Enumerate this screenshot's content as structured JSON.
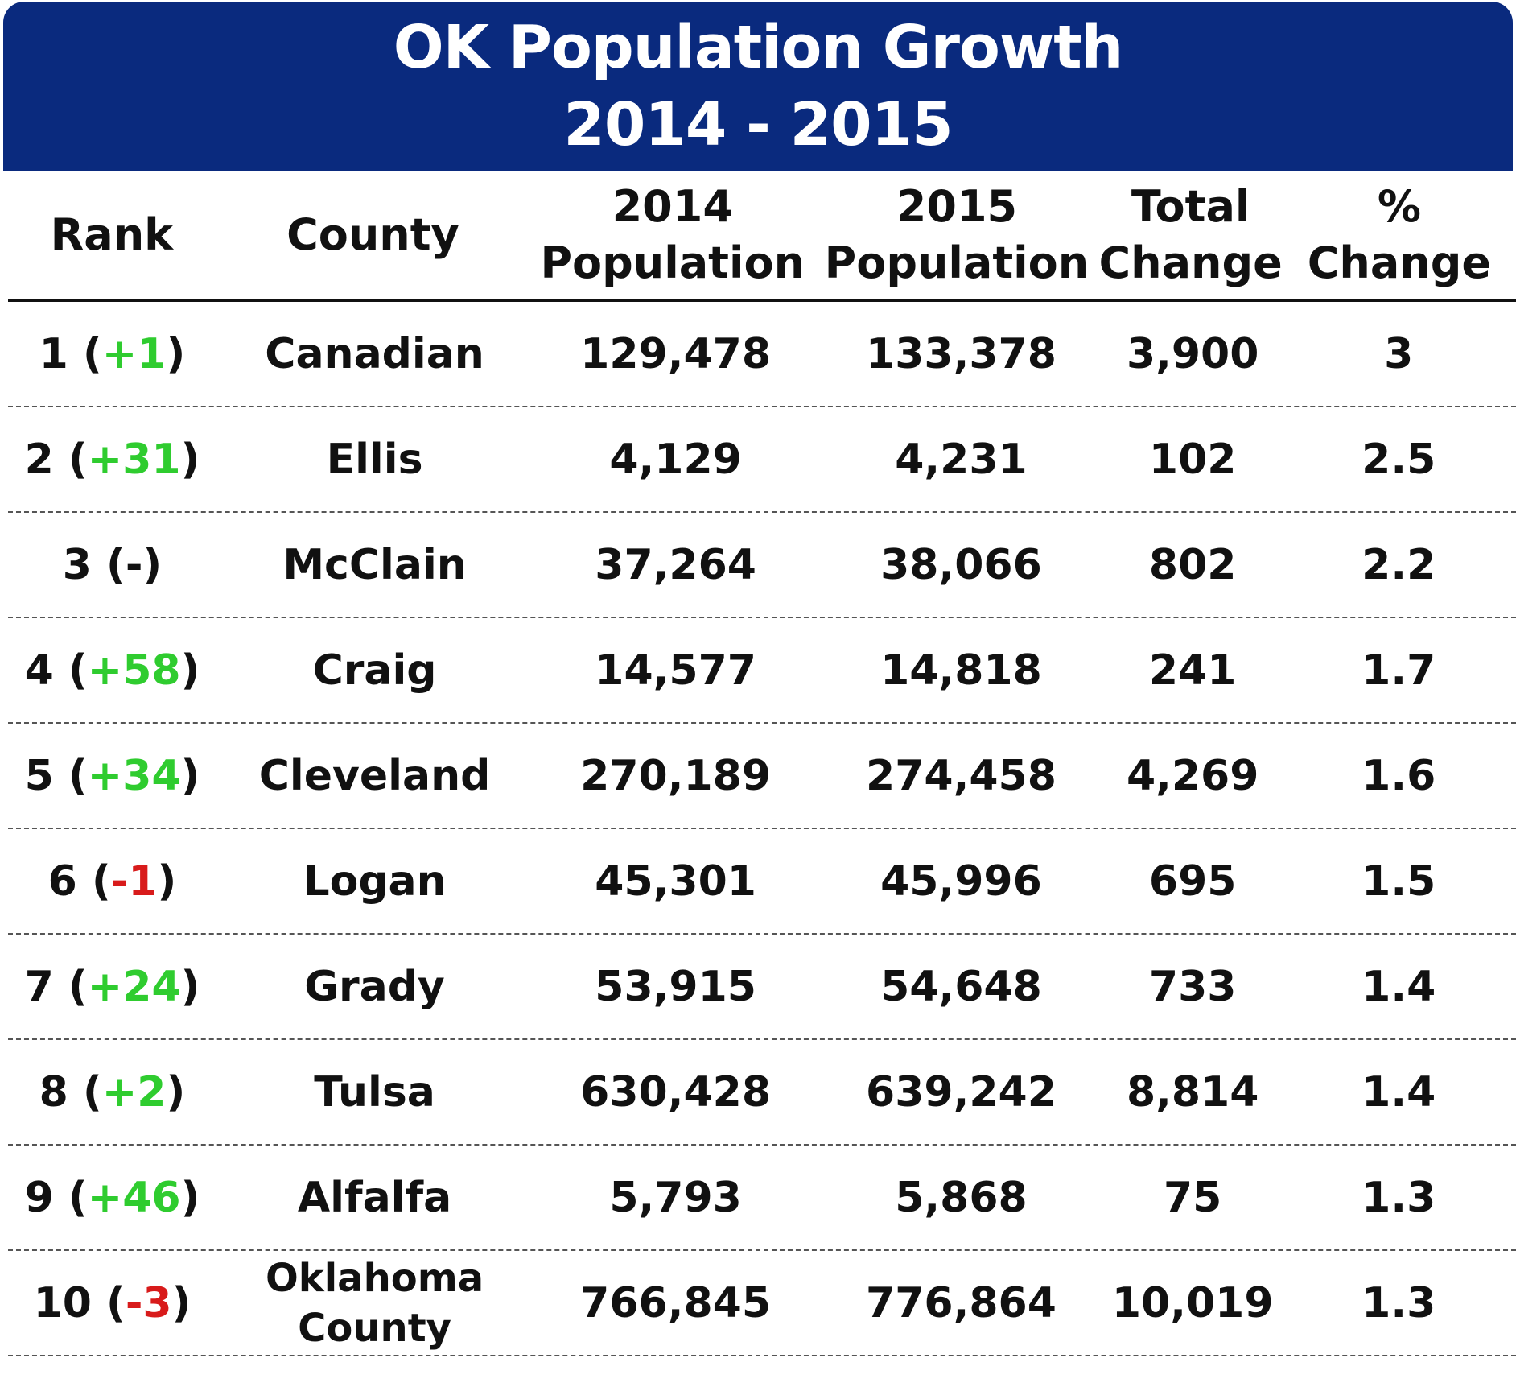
{
  "header": {
    "title_line1": "OK Population Growth",
    "title_line2": "2014 - 2015"
  },
  "colors": {
    "banner": "#0a2a7e",
    "up": "#2fcc2f",
    "down": "#d81b1b"
  },
  "columns": {
    "rank": [
      "Rank"
    ],
    "county": [
      "County"
    ],
    "pop2014": [
      "2014",
      "Population"
    ],
    "pop2015": [
      "2015",
      "Population"
    ],
    "total": [
      "Total",
      "Change"
    ],
    "pct": [
      "%",
      "Change"
    ]
  },
  "chart_data": {
    "type": "table",
    "title": "OK Population Growth 2014 - 2015",
    "headers": [
      "Rank",
      "County",
      "2014 Population",
      "2015 Population",
      "Total Change",
      "% Change"
    ],
    "rows": [
      {
        "rank": "1",
        "move": "+1",
        "trend": "up",
        "county": [
          "Canadian"
        ],
        "pop2014": "129,478",
        "pop2015": "133,378",
        "total": "3,900",
        "pct": "3"
      },
      {
        "rank": "2",
        "move": "+31",
        "trend": "up",
        "county": [
          "Ellis"
        ],
        "pop2014": "4,129",
        "pop2015": "4,231",
        "total": "102",
        "pct": "2.5"
      },
      {
        "rank": "3",
        "move": "-",
        "trend": "flat",
        "county": [
          "McClain"
        ],
        "pop2014": "37,264",
        "pop2015": "38,066",
        "total": "802",
        "pct": "2.2"
      },
      {
        "rank": "4",
        "move": "+58",
        "trend": "up",
        "county": [
          "Craig"
        ],
        "pop2014": "14,577",
        "pop2015": "14,818",
        "total": "241",
        "pct": "1.7"
      },
      {
        "rank": "5",
        "move": "+34",
        "trend": "up",
        "county": [
          "Cleveland"
        ],
        "pop2014": "270,189",
        "pop2015": "274,458",
        "total": "4,269",
        "pct": "1.6"
      },
      {
        "rank": "6",
        "move": "-1",
        "trend": "down",
        "county": [
          "Logan"
        ],
        "pop2014": "45,301",
        "pop2015": "45,996",
        "total": "695",
        "pct": "1.5"
      },
      {
        "rank": "7",
        "move": "+24",
        "trend": "up",
        "county": [
          "Grady"
        ],
        "pop2014": "53,915",
        "pop2015": "54,648",
        "total": "733",
        "pct": "1.4"
      },
      {
        "rank": "8",
        "move": "+2",
        "trend": "up",
        "county": [
          "Tulsa"
        ],
        "pop2014": "630,428",
        "pop2015": "639,242",
        "total": "8,814",
        "pct": "1.4"
      },
      {
        "rank": "9",
        "move": "+46",
        "trend": "up",
        "county": [
          "Alfalfa"
        ],
        "pop2014": "5,793",
        "pop2015": "5,868",
        "total": "75",
        "pct": "1.3"
      },
      {
        "rank": "10",
        "move": "-3",
        "trend": "down",
        "county": [
          "Oklahoma",
          "County"
        ],
        "pop2014": "766,845",
        "pop2015": "776,864",
        "total": "10,019",
        "pct": "1.3"
      }
    ]
  }
}
